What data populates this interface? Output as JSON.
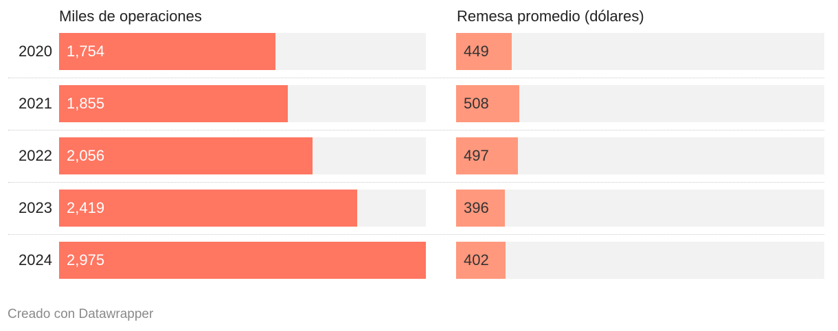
{
  "chart_data": [
    {
      "type": "bar",
      "orientation": "horizontal",
      "title": "Miles de operaciones",
      "categories": [
        "2020",
        "2021",
        "2022",
        "2023",
        "2024"
      ],
      "values": [
        1754,
        1855,
        2056,
        2419,
        2975
      ],
      "value_labels": [
        "1,754",
        "1,855",
        "2,056",
        "2,419",
        "2,975"
      ],
      "xlim": [
        0,
        2975
      ],
      "bar_color": "#ff7661",
      "track_color": "#f2f2f2",
      "label_color": "#ffffff",
      "grid": false
    },
    {
      "type": "bar",
      "orientation": "horizontal",
      "title": "Remesa promedio (dólares)",
      "categories": [
        "2020",
        "2021",
        "2022",
        "2023",
        "2024"
      ],
      "values": [
        449,
        508,
        497,
        396,
        402
      ],
      "value_labels": [
        "449",
        "508",
        "497",
        "396",
        "402"
      ],
      "xlim": [
        0,
        2975
      ],
      "bar_color": "#ff987d",
      "track_color": "#f2f2f2",
      "label_color": "#333333",
      "grid": false
    }
  ],
  "footer": {
    "credit": "Creado con Datawrapper"
  }
}
